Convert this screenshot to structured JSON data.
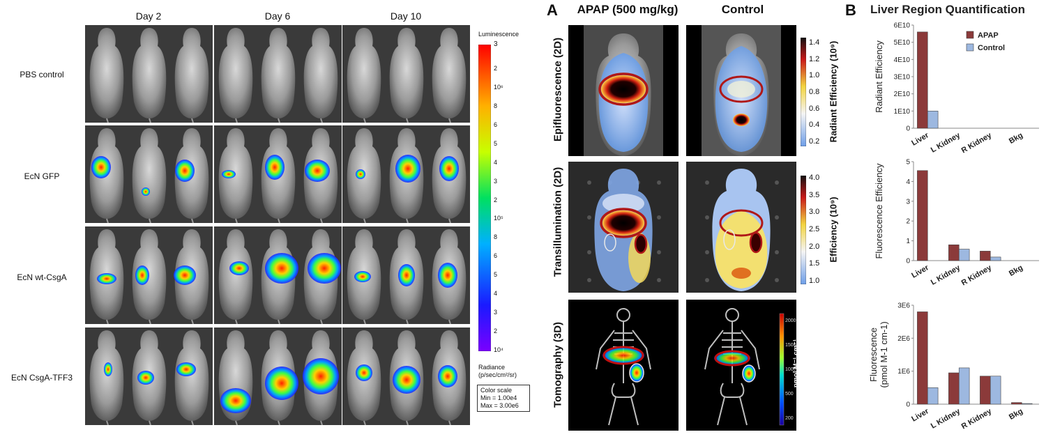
{
  "left": {
    "days": [
      "Day 2",
      "Day 6",
      "Day 10"
    ],
    "rows": [
      "PBS control",
      "EcN GFP",
      "EcN wt-CsgA",
      "EcN CsgA-TFF3"
    ],
    "colorbar": {
      "title": "Luminescence",
      "max_label": "3",
      "ticks_top": [
        "2",
        "10⁶",
        "8",
        "6",
        "5",
        "4",
        "3",
        "2",
        "10⁵",
        "8",
        "6",
        "5",
        "4",
        "3",
        "2",
        "10⁴"
      ],
      "radiance_label": "Radiance",
      "radiance_units": "(p/sec/cm²/sr)",
      "scale_title": "Color scale",
      "scale_min": "Min = 1.00e4",
      "scale_max": "Max = 3.00e6"
    }
  },
  "panelA": {
    "letter": "A",
    "col1": "APAP (500 mg/kg)",
    "col2": "Control",
    "rows": [
      "Epifluorescence (2D)",
      "Transillumination (2D)",
      "Tomography (3D)"
    ],
    "cb1": {
      "label": "Radiant Efficiency (10⁹)",
      "ticks": [
        "1.4",
        "1.2",
        "1.0",
        "0.8",
        "0.6",
        "0.4",
        "0.2"
      ]
    },
    "cb2": {
      "label": "Efficiency (10⁹)",
      "ticks": [
        "4.0",
        "3.5",
        "3.0",
        "2.5",
        "2.0",
        "1.5",
        "1.0"
      ]
    },
    "cb3": {
      "label": "pmol M⁻¹ cm⁻¹",
      "ticks": [
        "2000",
        "1500",
        "1000",
        "500",
        "200"
      ]
    }
  },
  "panelB": {
    "letter": "B",
    "title": "Liver Region Quantification",
    "colors": {
      "apap": "#8b3a3a",
      "control": "#9db8e0"
    },
    "chart_data": [
      {
        "type": "bar",
        "categories": [
          "Liver",
          "L Kidney",
          "R Kidney",
          "Bkg"
        ],
        "series": [
          {
            "name": "APAP",
            "values": [
              56000000000.0,
              0,
              0,
              0
            ]
          },
          {
            "name": "Control",
            "values": [
              10000000000.0,
              0,
              0,
              0
            ]
          }
        ],
        "ylabel": "Radiant Efficiency",
        "ylim": [
          0,
          60000000000.0
        ],
        "ytick_labels": [
          "0",
          "1E10",
          "2E10",
          "3E10",
          "4E10",
          "5E10",
          "6E10"
        ],
        "legend": "top-right"
      },
      {
        "type": "bar",
        "categories": [
          "Liver",
          "L Kidney",
          "R Kidney",
          "Bkg"
        ],
        "series": [
          {
            "name": "APAP",
            "values": [
              4.55,
              0.8,
              0.48,
              0
            ]
          },
          {
            "name": "Control",
            "values": [
              0,
              0.58,
              0.18,
              0
            ]
          }
        ],
        "ylabel": "Fluorescence Efficiency",
        "ylim": [
          0,
          5
        ],
        "ytick_labels": [
          "0",
          "1",
          "2",
          "3",
          "4",
          "5"
        ]
      },
      {
        "type": "bar",
        "categories": [
          "Liver",
          "L Kidney",
          "R Kidney",
          "Bkg"
        ],
        "series": [
          {
            "name": "APAP",
            "values": [
              2800000.0,
              950000.0,
              850000.0,
              50000.0
            ]
          },
          {
            "name": "Control",
            "values": [
              500000.0,
              1100000.0,
              850000.0,
              20000.0
            ]
          }
        ],
        "ylabel": "Fluorescence\n(pmol M-1 cm-1)",
        "ylabel_lines": [
          "Fluorescence",
          "(pmol M-1 cm-1)"
        ],
        "ylim": [
          0,
          3000000.0
        ],
        "ytick_labels": [
          "0",
          "1E6",
          "2E6",
          "3E6"
        ]
      }
    ]
  }
}
